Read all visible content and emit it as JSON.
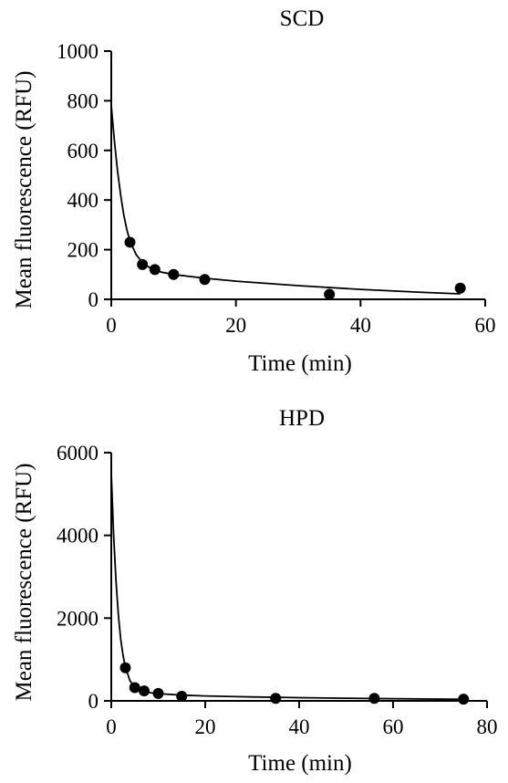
{
  "chart_data": [
    {
      "type": "scatter",
      "title": "SCD",
      "xlabel": "Time (min)",
      "ylabel": "Mean fluorescence (RFU)",
      "xlim": [
        0,
        60
      ],
      "ylim": [
        0,
        1000
      ],
      "xticks": [
        0,
        20,
        40,
        60
      ],
      "yticks": [
        0,
        200,
        400,
        600,
        800,
        1000
      ],
      "grid": false,
      "points": [
        {
          "x": 3,
          "y": 230
        },
        {
          "x": 5,
          "y": 140
        },
        {
          "x": 7,
          "y": 120
        },
        {
          "x": 10,
          "y": 100
        },
        {
          "x": 15,
          "y": 80
        },
        {
          "x": 35,
          "y": 20
        },
        {
          "x": 56,
          "y": 45
        }
      ],
      "fit_curve": [
        {
          "x": 0,
          "y": 780
        },
        {
          "x": 0.5,
          "y": 640
        },
        {
          "x": 1,
          "y": 520
        },
        {
          "x": 1.5,
          "y": 420
        },
        {
          "x": 2,
          "y": 340
        },
        {
          "x": 2.5,
          "y": 280
        },
        {
          "x": 3,
          "y": 235
        },
        {
          "x": 4,
          "y": 180
        },
        {
          "x": 5,
          "y": 148
        },
        {
          "x": 6,
          "y": 130
        },
        {
          "x": 7,
          "y": 118
        },
        {
          "x": 8,
          "y": 110
        },
        {
          "x": 10,
          "y": 100
        },
        {
          "x": 15,
          "y": 85
        },
        {
          "x": 20,
          "y": 73
        },
        {
          "x": 30,
          "y": 55
        },
        {
          "x": 40,
          "y": 40
        },
        {
          "x": 50,
          "y": 28
        },
        {
          "x": 56,
          "y": 22
        }
      ]
    },
    {
      "type": "scatter",
      "title": "HPD",
      "xlabel": "Time (min)",
      "ylabel": "Mean fluorescence (RFU)",
      "xlim": [
        0,
        80
      ],
      "ylim": [
        0,
        6000
      ],
      "xticks": [
        0,
        20,
        40,
        60,
        80
      ],
      "yticks": [
        0,
        2000,
        4000,
        6000
      ],
      "grid": false,
      "points": [
        {
          "x": 3,
          "y": 800
        },
        {
          "x": 5,
          "y": 320
        },
        {
          "x": 7,
          "y": 240
        },
        {
          "x": 10,
          "y": 180
        },
        {
          "x": 15,
          "y": 110
        },
        {
          "x": 35,
          "y": 60
        },
        {
          "x": 56,
          "y": 60
        },
        {
          "x": 75,
          "y": 40
        }
      ],
      "fit_curve": [
        {
          "x": 0,
          "y": 5500
        },
        {
          "x": 0.5,
          "y": 4000
        },
        {
          "x": 1,
          "y": 2900
        },
        {
          "x": 1.5,
          "y": 2100
        },
        {
          "x": 2,
          "y": 1500
        },
        {
          "x": 2.5,
          "y": 1100
        },
        {
          "x": 3,
          "y": 820
        },
        {
          "x": 4,
          "y": 480
        },
        {
          "x": 5,
          "y": 330
        },
        {
          "x": 6,
          "y": 260
        },
        {
          "x": 7,
          "y": 225
        },
        {
          "x": 8,
          "y": 200
        },
        {
          "x": 10,
          "y": 175
        },
        {
          "x": 15,
          "y": 140
        },
        {
          "x": 20,
          "y": 120
        },
        {
          "x": 30,
          "y": 95
        },
        {
          "x": 40,
          "y": 78
        },
        {
          "x": 50,
          "y": 65
        },
        {
          "x": 60,
          "y": 52
        },
        {
          "x": 75,
          "y": 38
        }
      ]
    }
  ]
}
